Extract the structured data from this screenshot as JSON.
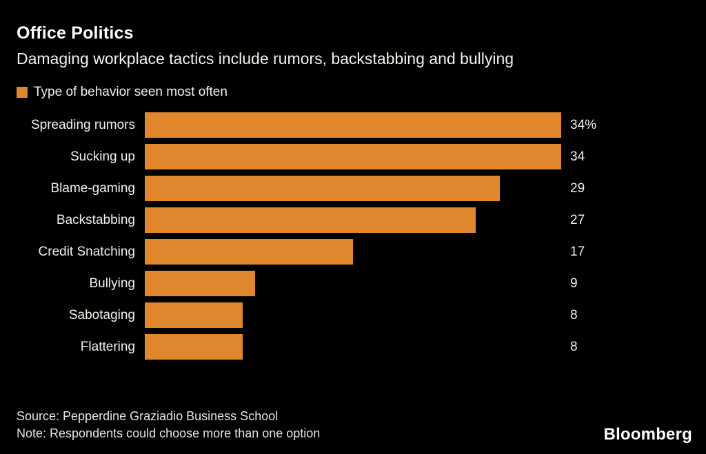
{
  "chart": {
    "title": "Office Politics",
    "subtitle": "Damaging workplace tactics include rumors, backstabbing and bullying",
    "legend_label": "Type of behavior seen most often",
    "source": "Source: Pepperdine Graziadio Business School",
    "note": "Note: Respondents could choose more than one option",
    "brand": "Bloomberg",
    "bar_color": "#e0862c",
    "background_color": "#000000",
    "text_color": "#f4f1ea"
  },
  "chart_data": {
    "type": "bar",
    "orientation": "horizontal",
    "title": "Office Politics",
    "subtitle": "Damaging workplace tactics include rumors, backstabbing and bullying",
    "legend": [
      "Type of behavior seen most often"
    ],
    "legend_position": "top-left",
    "categories": [
      "Spreading rumors",
      "Sucking up",
      "Blame-gaming",
      "Backstabbing",
      "Credit Snatching",
      "Bullying",
      "Sabotaging",
      "Flattering"
    ],
    "values": [
      34,
      34,
      29,
      27,
      17,
      9,
      8,
      8
    ],
    "value_labels": [
      "34%",
      "34",
      "29",
      "27",
      "17",
      "9",
      "8",
      "8"
    ],
    "xlabel": "",
    "ylabel": "",
    "xlim": [
      0,
      34
    ],
    "grid": false,
    "source": "Source: Pepperdine Graziadio Business School",
    "note": "Note: Respondents could choose more than one option"
  }
}
